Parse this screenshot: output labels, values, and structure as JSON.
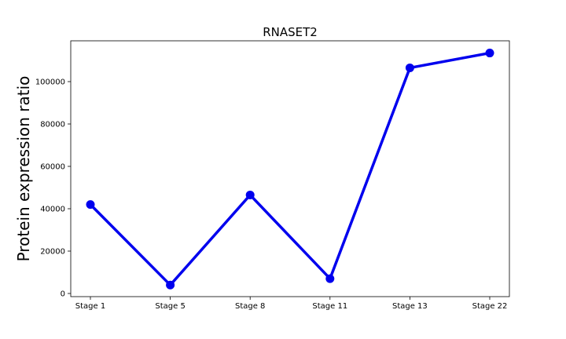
{
  "chart_data": {
    "type": "line",
    "title": "RNASET2",
    "xlabel": "",
    "ylabel": "Protein expression ratio",
    "categories": [
      "Stage 1",
      "Stage 5",
      "Stage 8",
      "Stage 11",
      "Stage 13",
      "Stage 22"
    ],
    "series": [
      {
        "values": [
          42000,
          4000,
          46500,
          7000,
          106500,
          113500
        ],
        "color": "#0000ee"
      }
    ],
    "ylim": [
      0,
      120000
    ],
    "yticks": [
      0,
      20000,
      40000,
      60000,
      80000,
      100000
    ],
    "ytick_labels": [
      "0",
      "20000",
      "40000",
      "60000",
      "80000",
      "100000"
    ],
    "grid": false,
    "legend": "none"
  }
}
